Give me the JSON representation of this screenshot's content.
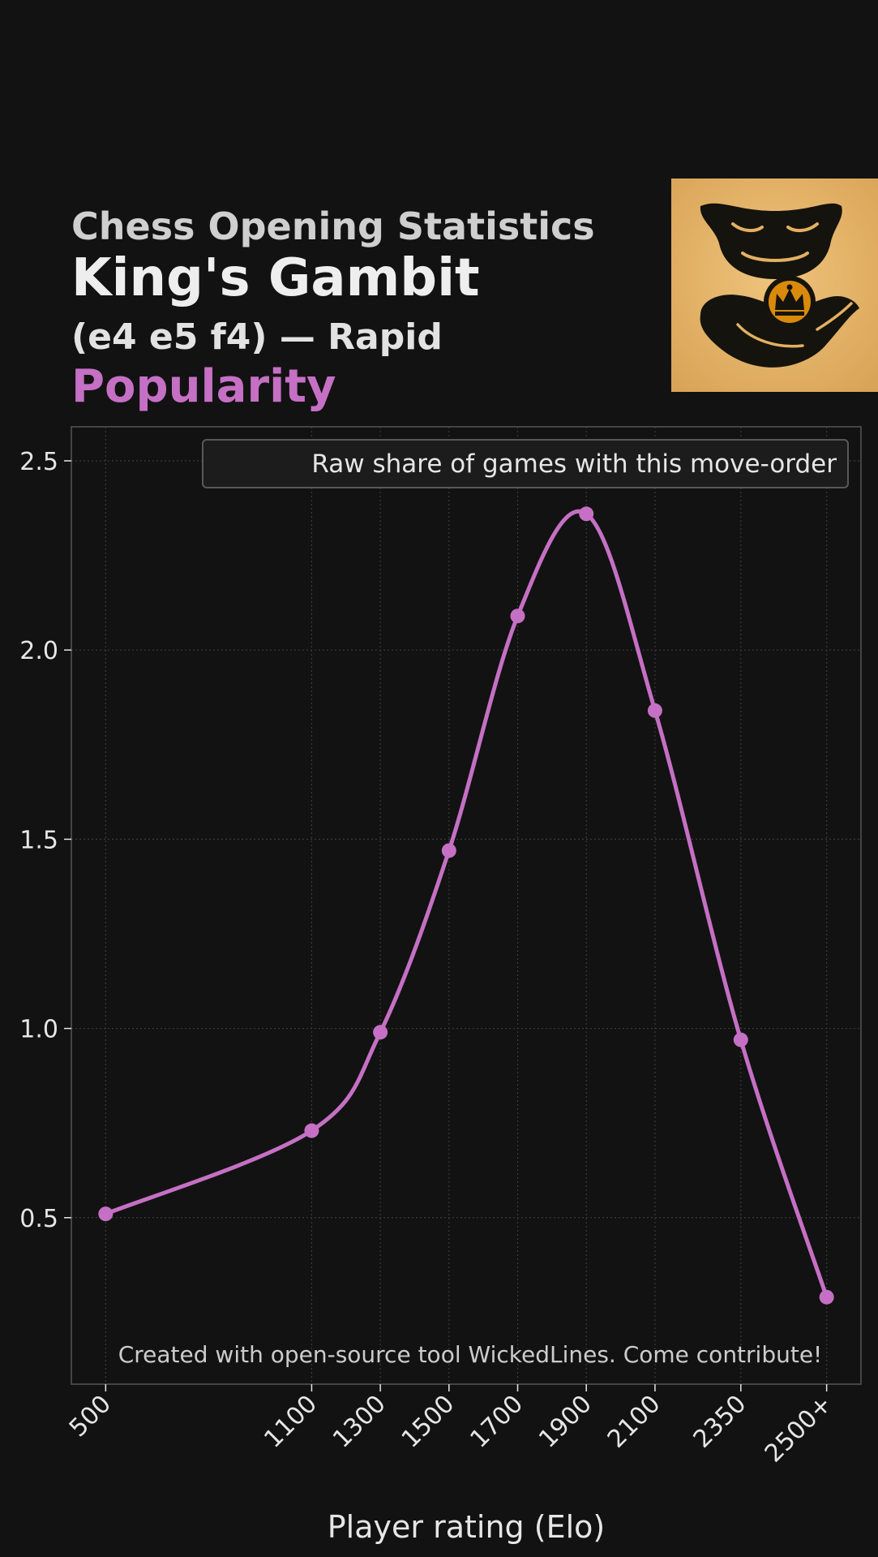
{
  "header": {
    "supertitle": "Chess Opening Statistics",
    "title": "King's Gambit",
    "subtitle": "(e4 e5 f4) — Rapid",
    "metric": "Popularity"
  },
  "logo": {
    "icon": "hand-holding-crown-coin-icon",
    "background": "#e3b062"
  },
  "chart_data": {
    "type": "line",
    "xlabel": "Player rating (Elo)",
    "ylabel": "",
    "categories": [
      "500",
      "1100",
      "1300",
      "1500",
      "1700",
      "1900",
      "2100",
      "2350",
      "2500+"
    ],
    "x": [
      500,
      1100,
      1300,
      1500,
      1700,
      1900,
      2100,
      2350,
      2600
    ],
    "series": [
      {
        "name": "Raw share of games with this move-order",
        "values": [
          0.51,
          0.73,
          0.99,
          1.47,
          2.09,
          2.36,
          1.84,
          0.97,
          0.29
        ],
        "color": "#c570c4"
      }
    ],
    "xlim": [
      400,
      2700
    ],
    "ylim": [
      0.06,
      2.59
    ],
    "yticks": [
      0.5,
      1.0,
      1.5,
      2.0,
      2.5
    ],
    "ytick_labels": [
      "0.5",
      "1.0",
      "1.5",
      "2.0",
      "2.5"
    ],
    "grid": true,
    "smooth": true,
    "legend_position": "top-right",
    "annotation": "Created with open-source tool WickedLines. Come contribute!"
  }
}
